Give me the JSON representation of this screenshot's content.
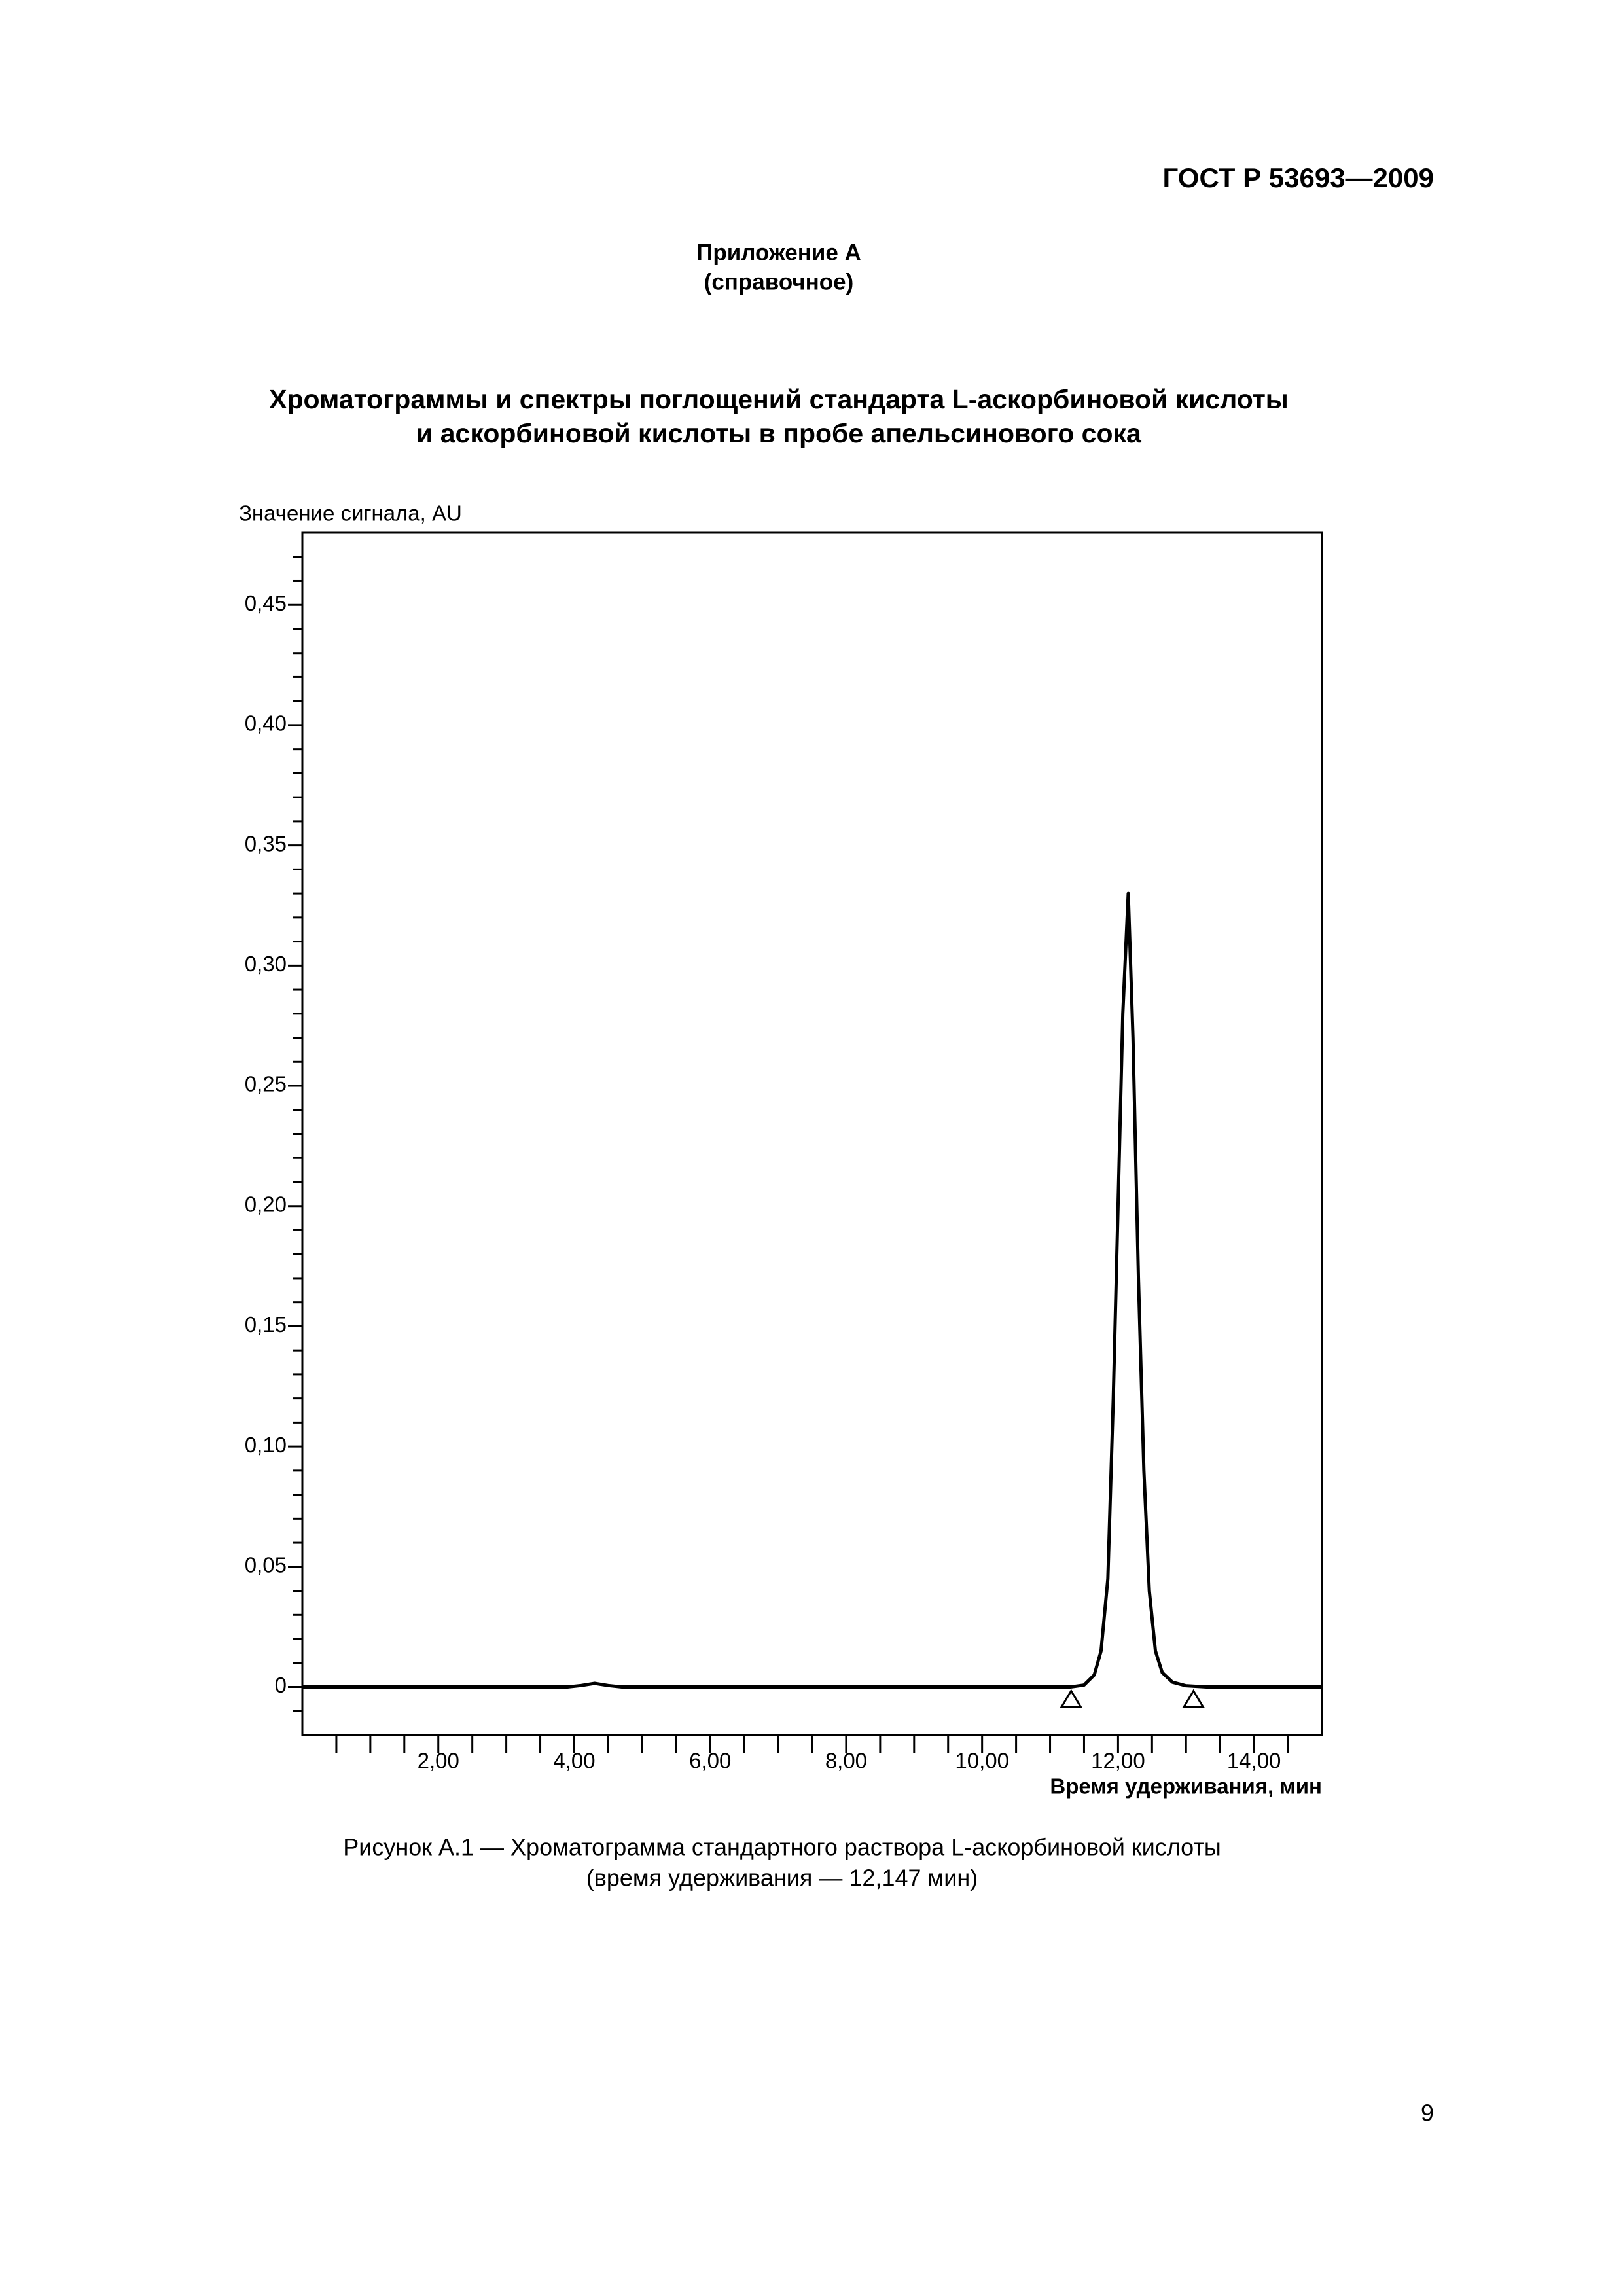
{
  "header": {
    "standard": "ГОСТ Р 53693—2009"
  },
  "appendix": {
    "title": "Приложение А",
    "note": "(справочное)"
  },
  "section_title": [
    "Хроматограммы и спектры поглощений стандарта L-аскорбиновой кислоты",
    "и аскорбиновой кислоты в пробе апельсинового сока"
  ],
  "chart_data": {
    "type": "line",
    "ylabel": "Значение сигнала, AU",
    "xlabel": "Время удерживания, мин",
    "color": "#000000",
    "x": [
      0,
      3.9,
      4.1,
      4.3,
      4.5,
      4.7,
      11.3,
      11.5,
      11.65,
      11.75,
      11.85,
      11.93,
      12.0,
      12.07,
      12.15,
      12.22,
      12.3,
      12.38,
      12.46,
      12.55,
      12.65,
      12.8,
      13.0,
      13.3,
      15
    ],
    "values": [
      0,
      0,
      0.0006,
      0.0015,
      0.0006,
      0,
      0,
      0.0008,
      0.005,
      0.015,
      0.045,
      0.12,
      0.2,
      0.28,
      0.33,
      0.27,
      0.17,
      0.09,
      0.04,
      0.015,
      0.006,
      0.002,
      0.0005,
      0,
      0
    ],
    "baseline_markers": [
      11.31,
      13.11
    ],
    "xlim": [
      0,
      15
    ],
    "ylim": [
      -0.02,
      0.48
    ],
    "xticks": [
      {
        "value": 2,
        "label": "2,00"
      },
      {
        "value": 4,
        "label": "4,00"
      },
      {
        "value": 6,
        "label": "6,00"
      },
      {
        "value": 8,
        "label": "8,00"
      },
      {
        "value": 10,
        "label": "10,00"
      },
      {
        "value": 12,
        "label": "12,00"
      },
      {
        "value": 14,
        "label": "14,00"
      }
    ],
    "xminorticks": [
      0.5,
      1,
      1.5,
      2.5,
      3,
      3.5,
      4.5,
      5,
      5.5,
      6.5,
      7,
      7.5,
      8.5,
      9,
      9.5,
      10.5,
      11,
      11.5,
      12.5,
      13,
      13.5,
      14.5
    ],
    "yticks": [
      0,
      {
        "value": 0.05,
        "label": "0,05"
      },
      {
        "value": 0.1,
        "label": "0,10"
      },
      {
        "value": 0.15,
        "label": "0,15"
      },
      {
        "value": 0.2,
        "label": "0,20"
      },
      {
        "value": 0.25,
        "label": "0,25"
      },
      {
        "value": 0.3,
        "label": "0,30"
      },
      {
        "value": 0.35,
        "label": "0,35"
      },
      {
        "value": 0.4,
        "label": "0,40"
      },
      {
        "value": 0.45,
        "label": "0,45"
      }
    ],
    "yminorticks": [
      -0.01,
      0.01,
      0.02,
      0.03,
      0.04,
      0.06,
      0.07,
      0.08,
      0.09,
      0.11,
      0.12,
      0.13,
      0.14,
      0.16,
      0.17,
      0.18,
      0.19,
      0.21,
      0.22,
      0.23,
      0.24,
      0.26,
      0.27,
      0.28,
      0.29,
      0.31,
      0.32,
      0.33,
      0.34,
      0.36,
      0.37,
      0.38,
      0.39,
      0.41,
      0.42,
      0.43,
      0.44,
      0.46,
      0.47
    ],
    "grid": false
  },
  "caption": [
    "Рисунок А.1 — Хроматограмма стандартного раствора L-аскорбиновой кислоты",
    "(время удерживания — 12,147 мин)"
  ],
  "page_number": "9"
}
